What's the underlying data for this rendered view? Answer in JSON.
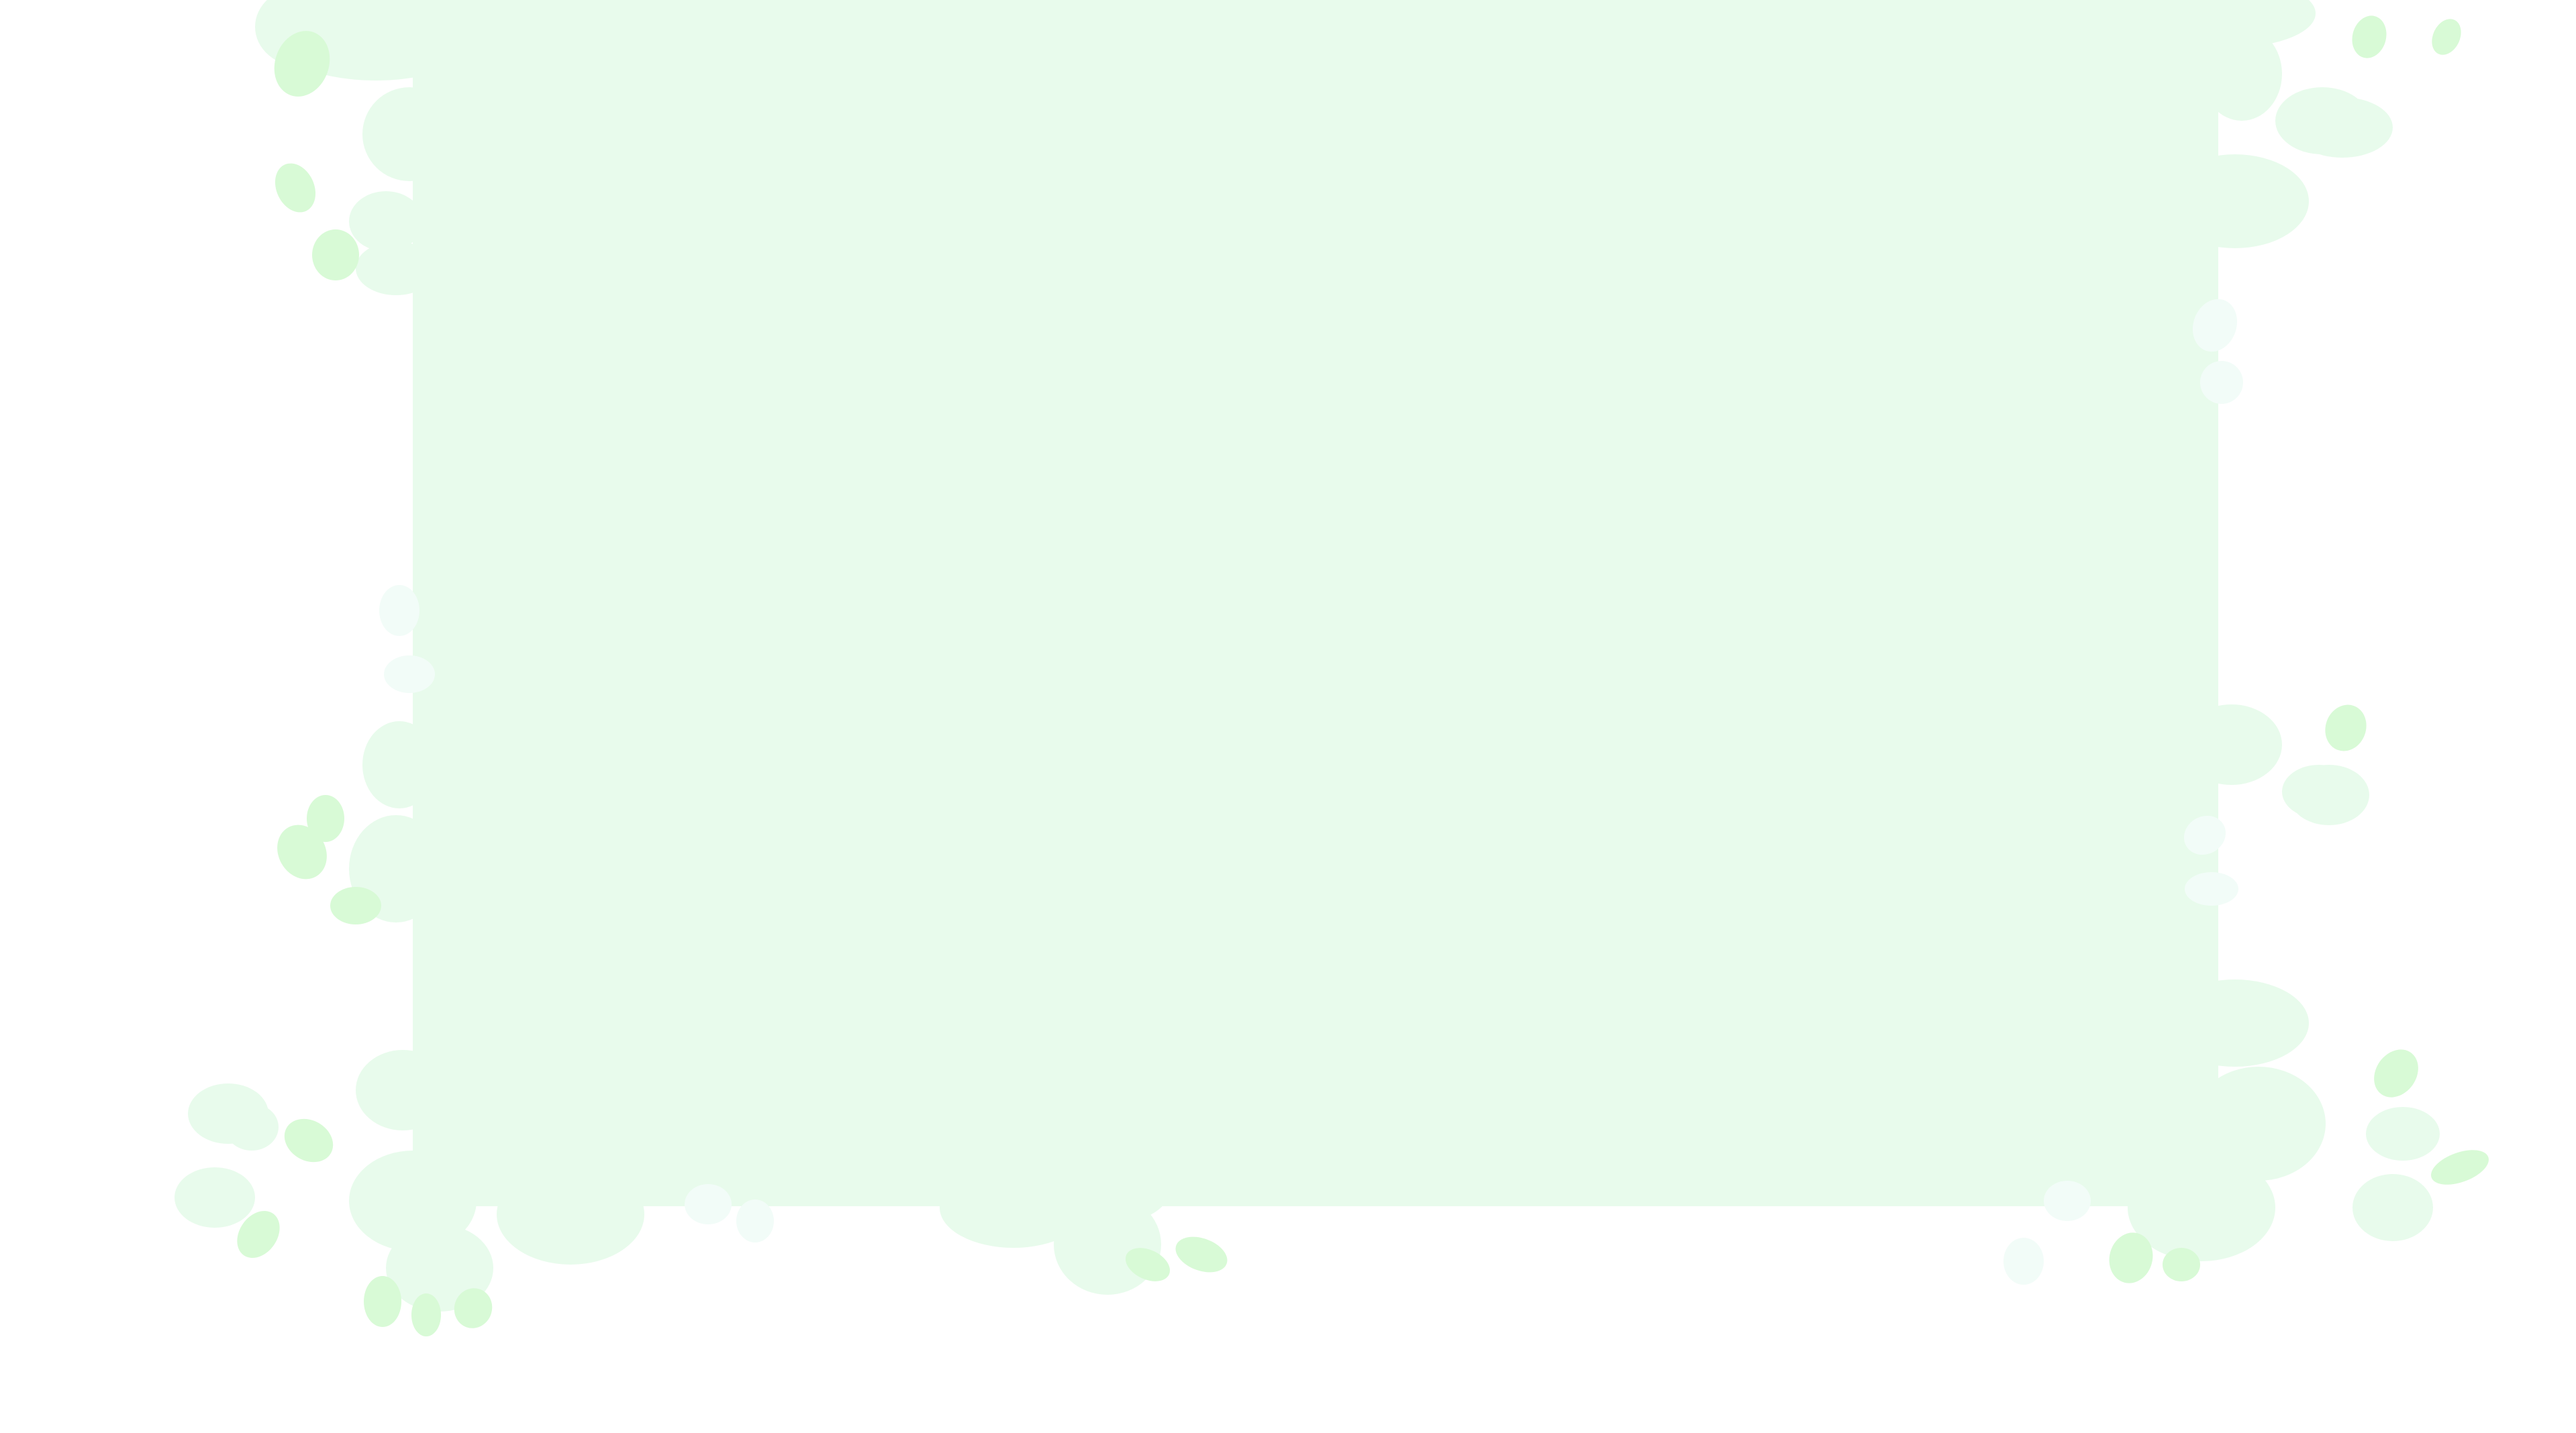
{
  "background": {
    "page_color": "#ffffff",
    "panel_color": "#e8fbec",
    "blob_color": "#e8fbec",
    "leaf_color": "#d8fad6",
    "pale_color": "#f2fcf8"
  }
}
